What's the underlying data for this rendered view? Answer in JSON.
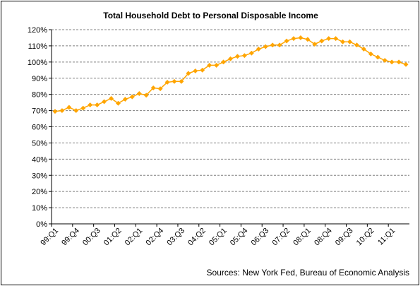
{
  "chart_data": {
    "type": "line",
    "title": "Total Household Debt to Personal Disposable Income",
    "source": "Sources: New York Fed, Bureau of Economic Analysis",
    "xlabel": "",
    "ylabel": "",
    "ylim": [
      0,
      120
    ],
    "ytick_step": 10,
    "ytick_labels": [
      "0%",
      "10%",
      "20%",
      "30%",
      "40%",
      "50%",
      "60%",
      "70%",
      "80%",
      "90%",
      "100%",
      "110%",
      "120%"
    ],
    "grid": "horizontal dashed",
    "legend": "none",
    "marker": "diamond",
    "color": "#FFA500",
    "x": [
      "99:Q1",
      "99:Q2",
      "99:Q3",
      "99:Q4",
      "00:Q1",
      "00:Q2",
      "00:Q3",
      "00:Q4",
      "01:Q1",
      "01:Q2",
      "01:Q3",
      "01:Q4",
      "02:Q1",
      "02:Q2",
      "02:Q3",
      "02:Q4",
      "03:Q1",
      "03:Q2",
      "03:Q3",
      "03:Q4",
      "04:Q1",
      "04:Q2",
      "04:Q3",
      "04:Q4",
      "05:Q1",
      "05:Q2",
      "05:Q3",
      "05:Q4",
      "06:Q1",
      "06:Q2",
      "06:Q3",
      "06:Q4",
      "07:Q1",
      "07:Q2",
      "07:Q3",
      "07:Q4",
      "08:Q1",
      "08:Q2",
      "08:Q3",
      "08:Q4",
      "09:Q1",
      "09:Q2",
      "09:Q3",
      "09:Q4",
      "10:Q1",
      "10:Q2",
      "10:Q3",
      "10:Q4",
      "11:Q1",
      "11:Q2",
      "11:Q3"
    ],
    "xtick_labels": [
      "99:Q1",
      "99:Q4",
      "00:Q3",
      "01:Q2",
      "02:Q1",
      "02:Q4",
      "03:Q3",
      "04:Q2",
      "05:Q1",
      "05:Q4",
      "06:Q3",
      "07:Q2",
      "08:Q1",
      "08:Q4",
      "09:Q3",
      "10:Q2",
      "11:Q1"
    ],
    "series": [
      {
        "values": [
          69.5,
          70.0,
          72.0,
          70.0,
          71.5,
          73.5,
          73.5,
          75.5,
          77.5,
          74.5,
          77.0,
          78.5,
          80.5,
          79.5,
          84.0,
          83.5,
          87.5,
          88.0,
          88.0,
          93.0,
          94.5,
          95.0,
          98.0,
          98.0,
          100.0,
          102.0,
          103.5,
          104.0,
          105.5,
          108.0,
          109.5,
          110.5,
          110.5,
          113.0,
          114.5,
          115.0,
          114.0,
          111.0,
          113.0,
          114.5,
          114.5,
          112.5,
          112.5,
          110.5,
          108.0,
          105.0,
          103.0,
          101.0,
          100.0,
          100.0,
          98.5
        ]
      }
    ]
  }
}
